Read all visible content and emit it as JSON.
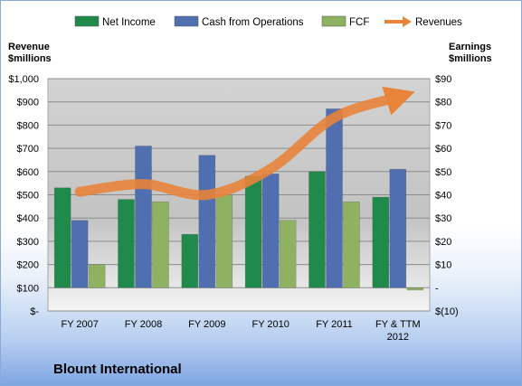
{
  "chart_data": {
    "type": "bar",
    "title": "Blount International",
    "categories": [
      "FY 2007",
      "FY 2008",
      "FY 2009",
      "FY 2010",
      "FY 2011",
      "FY & TTM 2012"
    ],
    "left_axis": {
      "label_line1": "Revenue",
      "label_line2": "$millions",
      "range": [
        0,
        1000
      ],
      "ticks": [
        "$-",
        "$100",
        "$200",
        "$300",
        "$400",
        "$500",
        "$600",
        "$700",
        "$800",
        "$900",
        "$1,000"
      ]
    },
    "right_axis": {
      "label_line1": "Earnings",
      "label_line2": "$millions",
      "range": [
        -10,
        90
      ],
      "ticks": [
        "$(10)",
        "-",
        "$10",
        "$20",
        "$30",
        "$40",
        "$50",
        "$60",
        "$70",
        "$80",
        "$90"
      ]
    },
    "series": [
      {
        "name": "Net Income",
        "axis": "right",
        "color": "#1f8a4c",
        "values": [
          43,
          38,
          23,
          48,
          50,
          39
        ]
      },
      {
        "name": "Cash from Operations",
        "axis": "right",
        "color": "#4f6fb0",
        "values": [
          29,
          61,
          57,
          49,
          77,
          51
        ]
      },
      {
        "name": "FCF",
        "axis": "right",
        "color": "#8fb262",
        "values": [
          10,
          37,
          40,
          29,
          37,
          -1
        ]
      },
      {
        "name": "Revenues",
        "axis": "left",
        "type": "line",
        "color": "#e8833a",
        "values": [
          513,
          546,
          500,
          612,
          832,
          920
        ]
      }
    ],
    "legend_position": "top",
    "grid": true
  }
}
